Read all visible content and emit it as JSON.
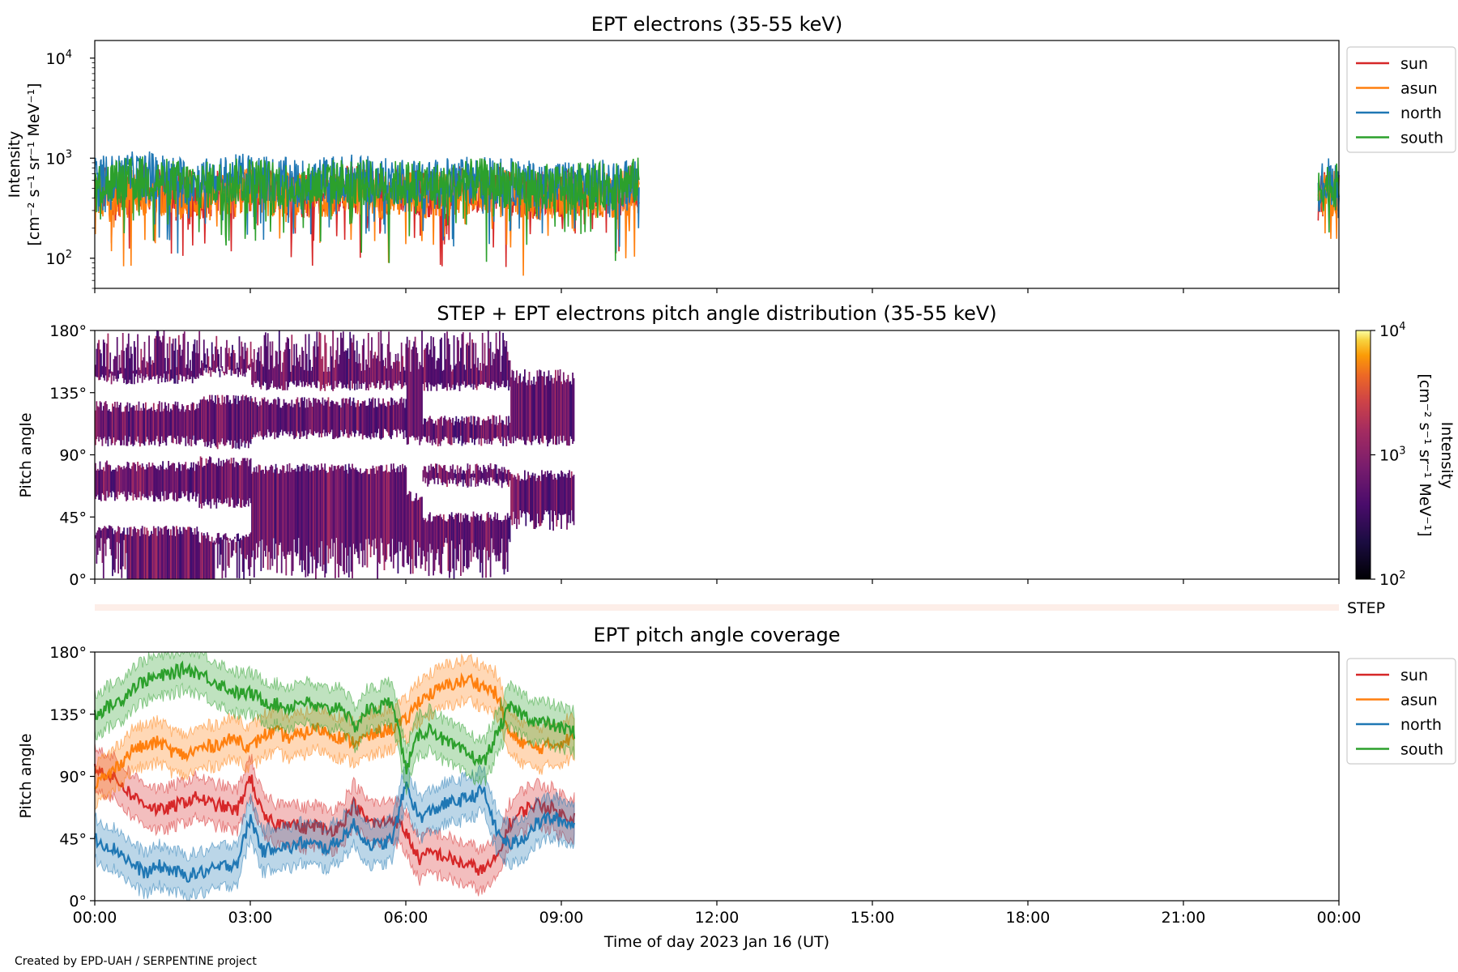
{
  "chart_data": [
    {
      "type": "line",
      "title": "EPT electrons (35-55 keV)",
      "ylabel": "Intensity",
      "ylabel_unit": "[cm⁻² s⁻¹ sr⁻¹ MeV⁻¹]",
      "y_scale": "log",
      "ylim": [
        50,
        15000
      ],
      "y_ticks": [
        {
          "value": 100,
          "base": "10",
          "exp": "2"
        },
        {
          "value": 1000,
          "base": "10",
          "exp": "3"
        },
        {
          "value": 10000,
          "base": "10",
          "exp": "4"
        }
      ],
      "xlim": [
        0,
        24
      ],
      "legend": "outside-right",
      "grid": false,
      "series": [
        {
          "name": "sun",
          "color": "#d62728",
          "segments": [
            {
              "x": [
                0,
                0.5,
                1,
                1.5,
                2,
                2.5,
                3,
                3.5,
                4,
                4.5,
                5,
                5.5,
                6,
                6.5,
                7,
                7.5,
                8,
                8.5,
                9,
                9.5,
                10,
                10.5
              ],
              "y": [
                500,
                450,
                520,
                480,
                420,
                460,
                500,
                470,
                430,
                490,
                510,
                450,
                470,
                440,
                480,
                500,
                460,
                420,
                450,
                470,
                430,
                520
              ]
            },
            {
              "x": [
                23.6,
                23.8,
                24.0
              ],
              "y": [
                400,
                520,
                450
              ]
            }
          ]
        },
        {
          "name": "asun",
          "color": "#ff7f0e",
          "segments": [
            {
              "x": [
                0,
                0.5,
                1,
                1.5,
                2,
                2.5,
                3,
                3.5,
                4,
                4.5,
                5,
                5.5,
                6,
                6.5,
                7,
                7.5,
                8,
                8.5,
                9,
                9.5,
                10,
                10.5
              ],
              "y": [
                450,
                420,
                480,
                430,
                400,
                430,
                470,
                440,
                410,
                450,
                480,
                420,
                440,
                410,
                450,
                470,
                430,
                400,
                420,
                440,
                410,
                480
              ]
            },
            {
              "x": [
                23.6,
                23.8,
                24.0
              ],
              "y": [
                380,
                470,
                420
              ]
            }
          ]
        },
        {
          "name": "north",
          "color": "#1f77b4",
          "segments": [
            {
              "x": [
                0,
                0.5,
                1,
                1.5,
                2,
                2.5,
                3,
                3.5,
                4,
                4.5,
                5,
                5.5,
                6,
                6.5,
                7,
                7.5,
                8,
                8.5,
                9,
                9.5,
                10,
                10.5
              ],
              "y": [
                600,
                650,
                700,
                620,
                580,
                610,
                660,
                600,
                570,
                620,
                640,
                580,
                600,
                560,
                600,
                620,
                580,
                540,
                560,
                580,
                550,
                650
              ]
            },
            {
              "x": [
                23.6,
                23.8,
                24.0
              ],
              "y": [
                500,
                600,
                550
              ]
            }
          ]
        },
        {
          "name": "south",
          "color": "#2ca02c",
          "segments": [
            {
              "x": [
                0,
                0.5,
                1,
                1.5,
                2,
                2.5,
                3,
                3.5,
                4,
                4.5,
                5,
                5.5,
                6,
                6.5,
                7,
                7.5,
                8,
                8.5,
                9,
                9.5,
                10,
                10.5
              ],
              "y": [
                550,
                580,
                620,
                570,
                530,
                560,
                600,
                560,
                520,
                570,
                590,
                540,
                560,
                520,
                560,
                580,
                540,
                500,
                520,
                540,
                510,
                600
              ]
            },
            {
              "x": [
                23.6,
                23.8,
                24.0
              ],
              "y": [
                450,
                550,
                500
              ]
            }
          ]
        }
      ]
    },
    {
      "type": "heatmap",
      "title": "STEP + EPT electrons pitch angle distribution (35-55 keV)",
      "ylabel": "Pitch angle",
      "y_ticks": [
        "0°",
        "45°",
        "90°",
        "135°",
        "180°"
      ],
      "ylim": [
        0,
        180
      ],
      "xlim": [
        0,
        24
      ],
      "colorbar": {
        "label": "Intensity",
        "unit": "[cm⁻² s⁻¹ sr⁻¹ MeV⁻¹]",
        "scale": "log",
        "range": [
          100,
          10000
        ],
        "ticks": [
          {
            "value": 100,
            "base": "10",
            "exp": "2"
          },
          {
            "value": 1000,
            "base": "10",
            "exp": "3"
          },
          {
            "value": 10000,
            "base": "10",
            "exp": "4"
          }
        ],
        "colormap": "inferno"
      },
      "coverage_hours": [
        0,
        9.25
      ],
      "gaps_by_hour": [
        {
          "x": [
            0.0,
            2.0
          ],
          "gaps": [
            [
              35,
              60
            ],
            [
              82,
              100
            ],
            [
              125,
              145
            ]
          ]
        },
        {
          "x": [
            2.0,
            3.0
          ],
          "gaps": [
            [
              30,
              55
            ],
            [
              85,
              98
            ],
            [
              130,
              150
            ]
          ]
        },
        {
          "x": [
            3.0,
            6.0
          ],
          "gaps": [
            [
              80,
              105
            ],
            [
              128,
              140
            ]
          ]
        },
        {
          "x": [
            6.0,
            6.3
          ],
          "gaps": [
            [
              60,
              100
            ]
          ]
        },
        {
          "x": [
            6.3,
            8.0
          ],
          "gaps": [
            [
              45,
              70
            ],
            [
              80,
              100
            ],
            [
              115,
              140
            ]
          ]
        },
        {
          "x": [
            8.0,
            9.25
          ],
          "gaps": [
            [
              75,
              100
            ]
          ]
        }
      ],
      "strip_label": "STEP"
    },
    {
      "type": "line",
      "title": "EPT pitch angle coverage",
      "ylabel": "Pitch angle",
      "xlabel": "Time of day 2023 Jan 16 (UT)",
      "y_ticks": [
        "0°",
        "45°",
        "90°",
        "135°",
        "180°"
      ],
      "x_ticks": [
        "00:00",
        "03:00",
        "06:00",
        "09:00",
        "12:00",
        "15:00",
        "18:00",
        "21:00",
        "00:00"
      ],
      "ylim": [
        0,
        180
      ],
      "xlim": [
        0,
        24
      ],
      "legend": "outside-right",
      "grid": false,
      "band_halfwidth_deg": 15,
      "series": [
        {
          "name": "sun",
          "color": "#d62728",
          "x": [
            0,
            0.25,
            0.5,
            0.75,
            1,
            1.25,
            1.5,
            1.75,
            2,
            2.25,
            2.5,
            2.75,
            3,
            3.25,
            3.5,
            3.75,
            4,
            4.25,
            4.5,
            4.75,
            5,
            5.25,
            5.5,
            5.75,
            6,
            6.25,
            6.5,
            6.75,
            7,
            7.25,
            7.5,
            7.75,
            8,
            8.25,
            8.5,
            8.75,
            9,
            9.25
          ],
          "y": [
            95,
            92,
            85,
            75,
            70,
            65,
            68,
            72,
            75,
            70,
            68,
            65,
            90,
            60,
            55,
            58,
            52,
            55,
            50,
            55,
            70,
            58,
            55,
            60,
            50,
            30,
            35,
            32,
            28,
            25,
            22,
            30,
            55,
            65,
            70,
            68,
            62,
            60
          ]
        },
        {
          "name": "asun",
          "color": "#ff7f0e",
          "x": [
            0,
            0.25,
            0.5,
            0.75,
            1,
            1.25,
            1.5,
            1.75,
            2,
            2.25,
            2.5,
            2.75,
            3,
            3.25,
            3.5,
            3.75,
            4,
            4.25,
            4.5,
            4.75,
            5,
            5.25,
            5.5,
            5.75,
            6,
            6.25,
            6.5,
            6.75,
            7,
            7.25,
            7.5,
            7.75,
            8,
            8.25,
            8.5,
            8.75,
            9,
            9.25
          ],
          "y": [
            85,
            90,
            100,
            110,
            112,
            115,
            108,
            105,
            110,
            112,
            115,
            118,
            110,
            120,
            122,
            118,
            120,
            125,
            122,
            118,
            115,
            118,
            122,
            125,
            130,
            145,
            150,
            155,
            158,
            160,
            155,
            150,
            120,
            115,
            110,
            112,
            115,
            118
          ]
        },
        {
          "name": "north",
          "color": "#1f77b4",
          "x": [
            0,
            0.25,
            0.5,
            0.75,
            1,
            1.25,
            1.5,
            1.75,
            2,
            2.25,
            2.5,
            2.75,
            3,
            3.25,
            3.5,
            3.75,
            4,
            4.25,
            4.5,
            4.75,
            5,
            5.25,
            5.5,
            5.75,
            6,
            6.25,
            6.5,
            6.75,
            7,
            7.25,
            7.5,
            7.75,
            8,
            8.25,
            8.5,
            8.75,
            9,
            9.25
          ],
          "y": [
            45,
            40,
            35,
            25,
            20,
            25,
            22,
            18,
            20,
            22,
            25,
            28,
            60,
            35,
            40,
            38,
            42,
            40,
            38,
            45,
            55,
            42,
            40,
            45,
            85,
            60,
            65,
            70,
            72,
            75,
            80,
            50,
            40,
            45,
            55,
            60,
            58,
            55
          ]
        },
        {
          "name": "south",
          "color": "#2ca02c",
          "x": [
            0,
            0.25,
            0.5,
            0.75,
            1,
            1.25,
            1.5,
            1.75,
            2,
            2.25,
            2.5,
            2.75,
            3,
            3.25,
            3.5,
            3.75,
            4,
            4.25,
            4.5,
            4.75,
            5,
            5.25,
            5.5,
            5.75,
            6,
            6.25,
            6.5,
            6.75,
            7,
            7.25,
            7.5,
            7.75,
            8,
            8.25,
            8.5,
            8.75,
            9,
            9.25
          ],
          "y": [
            135,
            140,
            145,
            155,
            160,
            162,
            165,
            168,
            165,
            160,
            155,
            150,
            150,
            145,
            142,
            140,
            145,
            140,
            138,
            142,
            125,
            138,
            140,
            145,
            95,
            120,
            125,
            115,
            110,
            105,
            100,
            120,
            140,
            135,
            130,
            128,
            125,
            122
          ]
        }
      ]
    }
  ],
  "credit": "Created by EPD-UAH / SERPENTINE project"
}
